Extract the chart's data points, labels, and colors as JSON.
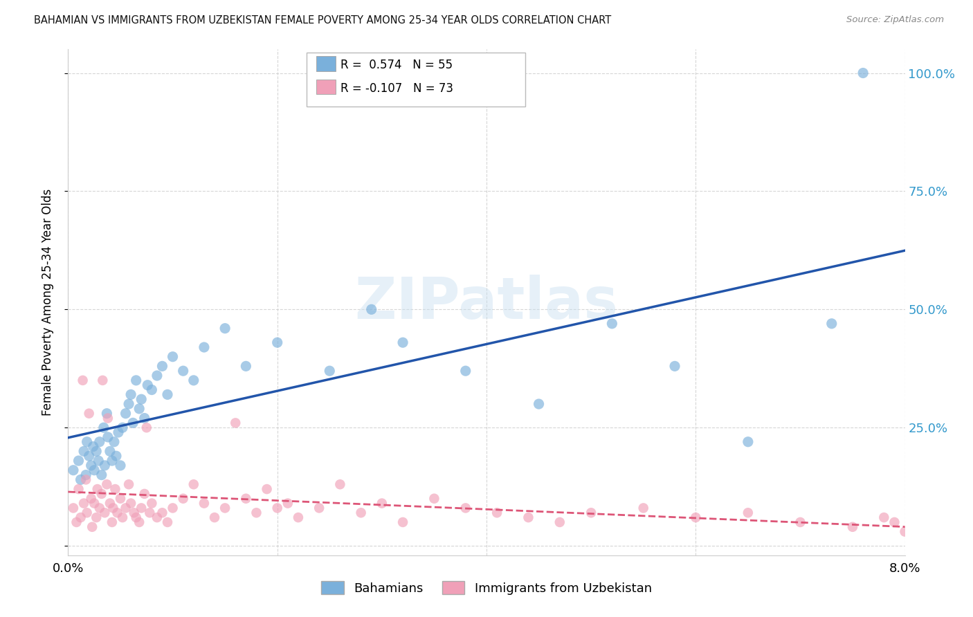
{
  "title": "BAHAMIAN VS IMMIGRANTS FROM UZBEKISTAN FEMALE POVERTY AMONG 25-34 YEAR OLDS CORRELATION CHART",
  "source": "Source: ZipAtlas.com",
  "ylabel": "Female Poverty Among 25-34 Year Olds",
  "xlim": [
    0.0,
    8.0
  ],
  "ylim": [
    -2.0,
    105.0
  ],
  "yticks": [
    0,
    25,
    50,
    75,
    100
  ],
  "ytick_labels": [
    "",
    "25.0%",
    "50.0%",
    "75.0%",
    "100.0%"
  ],
  "series1_color": "#7ab0db",
  "series2_color": "#f0a0b8",
  "trendline1_color": "#2255aa",
  "trendline2_color": "#dd5577",
  "background_color": "#ffffff",
  "watermark": "ZIPatlas",
  "bahamians_x": [
    0.05,
    0.1,
    0.12,
    0.15,
    0.17,
    0.18,
    0.2,
    0.22,
    0.24,
    0.25,
    0.27,
    0.29,
    0.3,
    0.32,
    0.34,
    0.35,
    0.37,
    0.38,
    0.4,
    0.42,
    0.44,
    0.46,
    0.48,
    0.5,
    0.52,
    0.55,
    0.58,
    0.6,
    0.62,
    0.65,
    0.68,
    0.7,
    0.73,
    0.76,
    0.8,
    0.85,
    0.9,
    0.95,
    1.0,
    1.1,
    1.2,
    1.3,
    1.5,
    1.7,
    2.0,
    2.5,
    2.9,
    3.2,
    3.8,
    4.5,
    5.2,
    5.8,
    6.5,
    7.3,
    7.6
  ],
  "bahamians_y": [
    16,
    18,
    14,
    20,
    15,
    22,
    19,
    17,
    21,
    16,
    20,
    18,
    22,
    15,
    25,
    17,
    28,
    23,
    20,
    18,
    22,
    19,
    24,
    17,
    25,
    28,
    30,
    32,
    26,
    35,
    29,
    31,
    27,
    34,
    33,
    36,
    38,
    32,
    40,
    37,
    35,
    42,
    46,
    38,
    43,
    37,
    50,
    43,
    37,
    30,
    47,
    38,
    22,
    47,
    100
  ],
  "uzbekistan_x": [
    0.05,
    0.08,
    0.1,
    0.12,
    0.14,
    0.15,
    0.17,
    0.18,
    0.2,
    0.22,
    0.23,
    0.25,
    0.27,
    0.28,
    0.3,
    0.32,
    0.33,
    0.35,
    0.37,
    0.38,
    0.4,
    0.42,
    0.43,
    0.45,
    0.47,
    0.5,
    0.52,
    0.55,
    0.58,
    0.6,
    0.63,
    0.65,
    0.68,
    0.7,
    0.73,
    0.75,
    0.78,
    0.8,
    0.85,
    0.9,
    0.95,
    1.0,
    1.1,
    1.2,
    1.3,
    1.4,
    1.5,
    1.6,
    1.7,
    1.8,
    1.9,
    2.0,
    2.1,
    2.2,
    2.4,
    2.6,
    2.8,
    3.0,
    3.2,
    3.5,
    3.8,
    4.1,
    4.4,
    4.7,
    5.0,
    5.5,
    6.0,
    6.5,
    7.0,
    7.5,
    7.8,
    8.0,
    7.9
  ],
  "uzbekistan_y": [
    8,
    5,
    12,
    6,
    35,
    9,
    14,
    7,
    28,
    10,
    4,
    9,
    6,
    12,
    8,
    11,
    35,
    7,
    13,
    27,
    9,
    5,
    8,
    12,
    7,
    10,
    6,
    8,
    13,
    9,
    7,
    6,
    5,
    8,
    11,
    25,
    7,
    9,
    6,
    7,
    5,
    8,
    10,
    13,
    9,
    6,
    8,
    26,
    10,
    7,
    12,
    8,
    9,
    6,
    8,
    13,
    7,
    9,
    5,
    10,
    8,
    7,
    6,
    5,
    7,
    8,
    6,
    7,
    5,
    4,
    6,
    3,
    5
  ]
}
